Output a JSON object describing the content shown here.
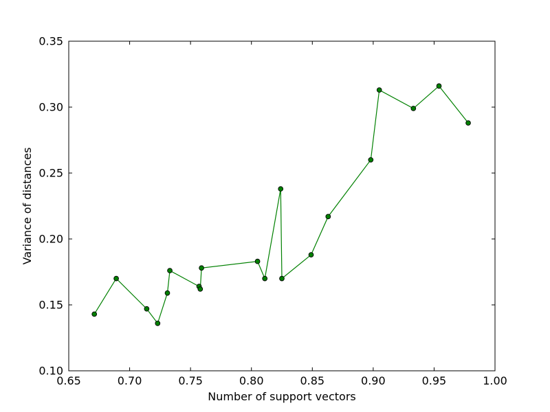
{
  "chart_data": {
    "type": "line",
    "title": "",
    "xlabel": "Number of support vectors",
    "ylabel": "Variance of distances",
    "xlim": [
      0.65,
      1.0
    ],
    "ylim": [
      0.1,
      0.35
    ],
    "xticks": [
      0.65,
      0.7,
      0.75,
      0.8,
      0.85,
      0.9,
      0.95,
      1.0
    ],
    "yticks": [
      0.1,
      0.15,
      0.2,
      0.25,
      0.3,
      0.35
    ],
    "xtick_labels": [
      "0.65",
      "0.70",
      "0.75",
      "0.80",
      "0.85",
      "0.90",
      "0.95",
      "1.00"
    ],
    "ytick_labels": [
      "0.10",
      "0.15",
      "0.20",
      "0.25",
      "0.30",
      "0.35"
    ],
    "grid": false,
    "line_color": "#008000",
    "marker_color": "#008000",
    "series": [
      {
        "x": [
          0.671,
          0.689,
          0.714,
          0.723,
          0.731,
          0.733,
          0.757,
          0.758,
          0.759,
          0.805,
          0.811,
          0.824,
          0.825,
          0.849,
          0.863,
          0.898,
          0.905,
          0.933,
          0.954,
          0.978
        ],
        "y": [
          0.143,
          0.17,
          0.147,
          0.136,
          0.159,
          0.176,
          0.164,
          0.162,
          0.178,
          0.183,
          0.17,
          0.238,
          0.17,
          0.188,
          0.217,
          0.26,
          0.313,
          0.299,
          0.316,
          0.288
        ]
      }
    ]
  }
}
